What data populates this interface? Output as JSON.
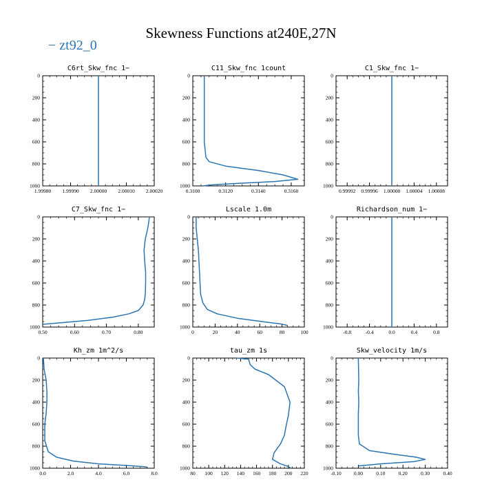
{
  "figure": {
    "title": "Skewness Functions at240E,27N",
    "legend": {
      "label": "zt92_0",
      "color": "#2a74b2"
    },
    "line_color": "#2a74b2"
  },
  "chart_data": [
    {
      "type": "line",
      "title": "C6rt_Skw_fnc  1−",
      "xlim": [
        1.9998,
        2.0002
      ],
      "ylim": [
        1000,
        0
      ],
      "xticks": [
        "1.99980",
        "1.99990",
        "2.00000",
        "2.00010",
        "2.00020"
      ],
      "yticks": [
        "0",
        "200",
        "400",
        "600",
        "800",
        "1000"
      ],
      "series": [
        {
          "name": "zt92_0",
          "x": [
            2.0,
            2.0
          ],
          "y": [
            0,
            1000
          ]
        }
      ]
    },
    {
      "type": "line",
      "title": "C11_Skw_fnc  1count",
      "xlim": [
        0.31,
        0.3168
      ],
      "ylim": [
        1000,
        0
      ],
      "xticks": [
        "0.3100",
        "0.3120",
        "0.3140",
        "0.3160"
      ],
      "yticks": [
        "0",
        "200",
        "400",
        "600",
        "800",
        "1000"
      ],
      "series": [
        {
          "name": "zt92_0",
          "x": [
            0.3107,
            0.3107,
            0.3107,
            0.3107,
            0.3108,
            0.311,
            0.312,
            0.314,
            0.3155,
            0.3164,
            0.315,
            0.313,
            0.3112,
            0.3106
          ],
          "y": [
            0,
            200,
            400,
            600,
            740,
            780,
            820,
            860,
            900,
            940,
            960,
            975,
            990,
            1000
          ]
        }
      ]
    },
    {
      "type": "line",
      "title": "C1_Skw_fnc  1−",
      "xlim": [
        0.9999,
        1.0001
      ],
      "ylim": [
        1000,
        0
      ],
      "xticks": [
        "0.99992",
        "0.99996",
        "1.00000",
        "1.00004",
        "1.00008"
      ],
      "yticks": [
        "0",
        "200",
        "400",
        "600",
        "800",
        "1000"
      ],
      "series": [
        {
          "name": "zt92_0",
          "x": [
            1.0,
            1.0
          ],
          "y": [
            0,
            1000
          ]
        }
      ]
    },
    {
      "type": "line",
      "title": "C7_Skw_fnc  1−",
      "xlim": [
        0.5,
        0.85
      ],
      "ylim": [
        1000,
        0
      ],
      "xticks": [
        "0.50",
        "0.60",
        "0.70",
        "0.80"
      ],
      "yticks": [
        "0",
        "200",
        "400",
        "600",
        "800",
        "1000"
      ],
      "series": [
        {
          "name": "zt92_0",
          "x": [
            0.835,
            0.83,
            0.822,
            0.818,
            0.82,
            0.823,
            0.823,
            0.822,
            0.82,
            0.815,
            0.8,
            0.77,
            0.72,
            0.64,
            0.56,
            0.5
          ],
          "y": [
            0,
            100,
            200,
            300,
            400,
            500,
            600,
            700,
            750,
            800,
            850,
            880,
            910,
            940,
            960,
            975
          ]
        }
      ]
    },
    {
      "type": "line",
      "title": "Lscale  1.0m",
      "xlim": [
        0,
        100
      ],
      "ylim": [
        1000,
        0
      ],
      "xticks": [
        "0",
        "20",
        "40",
        "60",
        "80",
        "100"
      ],
      "yticks": [
        "0",
        "200",
        "400",
        "600",
        "800",
        "1000"
      ],
      "series": [
        {
          "name": "zt92_0",
          "x": [
            3,
            3,
            4,
            5,
            5.5,
            6,
            6.5,
            7,
            9,
            13,
            22,
            40,
            62,
            78,
            85
          ],
          "y": [
            0,
            100,
            200,
            300,
            400,
            500,
            600,
            700,
            780,
            840,
            880,
            920,
            950,
            970,
            985
          ]
        }
      ]
    },
    {
      "type": "line",
      "title": "Richardson_num  1−",
      "xlim": [
        -1.0,
        1.0
      ],
      "ylim": [
        1000,
        0
      ],
      "xticks": [
        "-0.8",
        "-0.4",
        "0.0",
        "0.4",
        "0.8"
      ],
      "yticks": [
        "0",
        "200",
        "400",
        "600",
        "800",
        "1000"
      ],
      "series": [
        {
          "name": "zt92_0",
          "x": [
            0.0,
            0.0
          ],
          "y": [
            0,
            1000
          ]
        }
      ]
    },
    {
      "type": "line",
      "title": "Kh_zm  1m^2/s",
      "xlim": [
        0.0,
        8.0
      ],
      "ylim": [
        1000,
        0
      ],
      "xticks": [
        "0.0",
        "2.0",
        "4.0",
        "6.0",
        "8.0"
      ],
      "yticks": [
        "0",
        "200",
        "400",
        "600",
        "800",
        "1000"
      ],
      "series": [
        {
          "name": "zt92_0",
          "x": [
            0.05,
            0.1,
            0.25,
            0.3,
            0.3,
            0.25,
            0.15,
            0.15,
            0.4,
            1.0,
            2.2,
            4.0,
            6.0,
            7.2,
            7.5
          ],
          "y": [
            0,
            100,
            200,
            300,
            400,
            500,
            600,
            750,
            850,
            900,
            935,
            960,
            975,
            985,
            990
          ]
        }
      ]
    },
    {
      "type": "line",
      "title": "tau_zm  1s",
      "xlim": [
        80,
        220
      ],
      "ylim": [
        1000,
        0
      ],
      "xticks": [
        "80",
        "100",
        "120",
        "140",
        "160",
        "180",
        "200",
        "220"
      ],
      "yticks": [
        "0",
        "200",
        "400",
        "600",
        "800",
        "1000"
      ],
      "series": [
        {
          "name": "zt92_0",
          "x": [
            135,
            150,
            152,
            158,
            175,
            195,
            202,
            200,
            197,
            195,
            190,
            182,
            180,
            190,
            200,
            203
          ],
          "y": [
            0,
            10,
            60,
            100,
            150,
            260,
            400,
            520,
            620,
            700,
            780,
            860,
            920,
            960,
            985,
            1000
          ]
        }
      ]
    },
    {
      "type": "line",
      "title": "Skw_velocity  1m/s",
      "xlim": [
        -0.1,
        0.4
      ],
      "ylim": [
        1000,
        0
      ],
      "xticks": [
        "-0.10",
        "0.00",
        "0.10",
        "0.20",
        "0.30",
        "0.40"
      ],
      "yticks": [
        "0",
        "200",
        "400",
        "600",
        "800",
        "1000"
      ],
      "series": [
        {
          "name": "zt92_0",
          "x": [
            0.0,
            0.002,
            0.0,
            0.002,
            0.0,
            0.0,
            0.005,
            0.05,
            0.15,
            0.26,
            0.3,
            0.25,
            0.1,
            0.0
          ],
          "y": [
            0,
            200,
            300,
            400,
            500,
            700,
            780,
            840,
            870,
            900,
            920,
            940,
            960,
            980
          ]
        }
      ]
    }
  ]
}
